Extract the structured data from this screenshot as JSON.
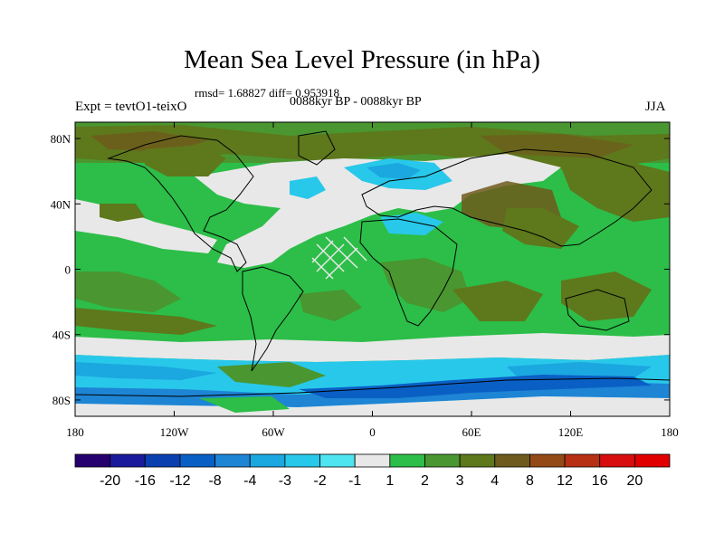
{
  "title": "Mean Sea Level Pressure (in hPa)",
  "stats": "rmsd= 1.68827 diff= 0.953918",
  "period": "0088kyr BP - 0088kyr BP",
  "experiment": "Expt = tevtO1-teixO",
  "season": "JJA",
  "axes": {
    "lat_labels": [
      "80N",
      "40N",
      "0",
      "40S",
      "80S"
    ],
    "lat_values": [
      80,
      40,
      0,
      -40,
      -80
    ],
    "lon_labels": [
      "180",
      "120W",
      "60W",
      "0",
      "60E",
      "120E",
      "180"
    ],
    "lon_values": [
      -180,
      -120,
      -60,
      0,
      60,
      120,
      180
    ]
  },
  "colorbar": {
    "labels": [
      "-20",
      "-16",
      "-12",
      "-8",
      "-4",
      "-3",
      "-2",
      "-1",
      "1",
      "2",
      "3",
      "4",
      "8",
      "12",
      "16",
      "20"
    ],
    "colors": [
      "#26006e",
      "#1a1a9c",
      "#0a3fb0",
      "#0a5fc4",
      "#1e84d4",
      "#1ba7e0",
      "#28c8ea",
      "#4ee4f0",
      "#e8e8e8",
      "#2cbe48",
      "#4a9630",
      "#5e781c",
      "#6e5a1c",
      "#944a16",
      "#b83014",
      "#d80e0e",
      "#e00000"
    ]
  },
  "palette": {
    "ocean_green": "#2cbe48",
    "dark_green": "#4a9630",
    "olive": "#5e781c",
    "brown": "#6e5a1c",
    "neutral": "#e8e8e8",
    "light_cyan": "#4ee4f0",
    "cyan": "#28c8ea",
    "sky": "#1ba7e0",
    "blue": "#1e84d4",
    "deep_blue": "#0a5fc4"
  }
}
